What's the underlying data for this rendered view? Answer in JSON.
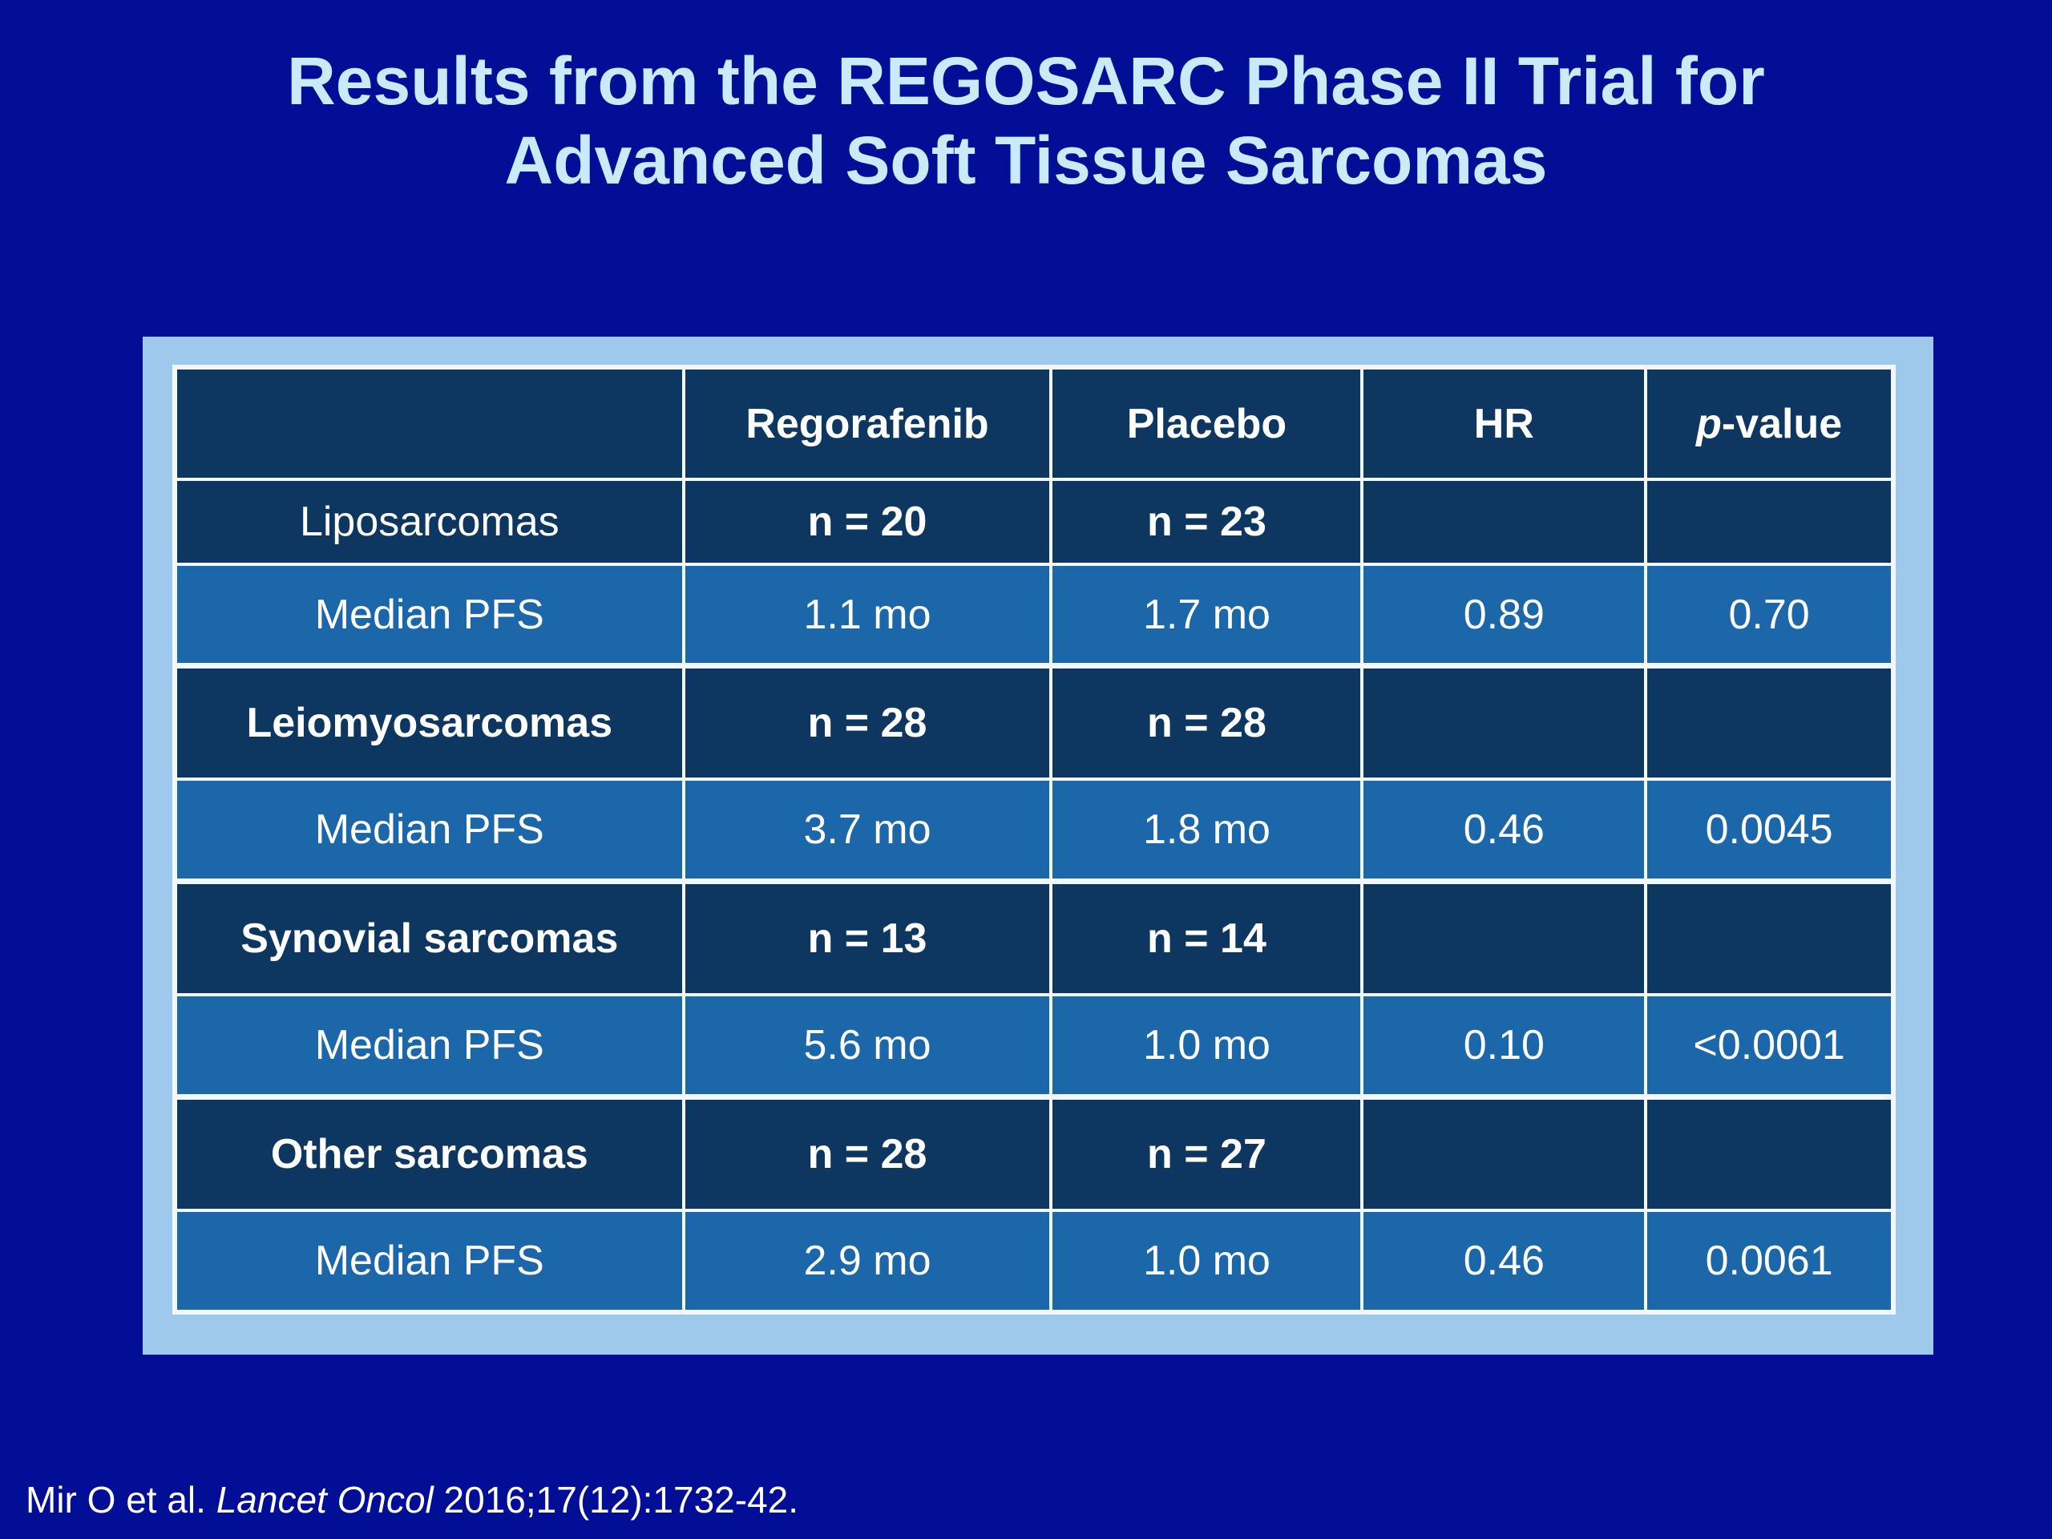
{
  "slide": {
    "title_line1": "Results from the REGOSARC Phase II Trial for",
    "title_line2": "Advanced Soft Tissue Sarcomas"
  },
  "citation": {
    "prefix": "Mir O et al. ",
    "journal": "Lancet Oncol",
    "suffix": " 2016;17(12):1732-42."
  },
  "colors": {
    "slide_background": "#020E96",
    "frame": "#9FC9EC",
    "cell_dark": "#0D3760",
    "cell_light": "#1B67A9",
    "cell_border": "#F2F7FC",
    "title_text": "#C9EAF9",
    "table_text": "#FFFFFF"
  },
  "table": {
    "headers": [
      "",
      "Regorafenib",
      "Placebo",
      "HR",
      "p-value"
    ],
    "header_pvalue": {
      "italic": "p",
      "rest": "-value"
    },
    "rows": [
      {
        "label": "Liposarcomas",
        "regorafenib": "n = 20",
        "placebo": "n = 23",
        "hr": "",
        "pvalue": "",
        "type": "category"
      },
      {
        "label": "Median PFS",
        "regorafenib": "1.1 mo",
        "placebo": "1.7 mo",
        "hr": "0.89",
        "pvalue": "0.70",
        "type": "data"
      },
      {
        "label": "Leiomyosarcomas",
        "regorafenib": "n = 28",
        "placebo": "n = 28",
        "hr": "",
        "pvalue": "",
        "type": "category"
      },
      {
        "label": "Median PFS",
        "regorafenib": "3.7 mo",
        "placebo": "1.8 mo",
        "hr": "0.46",
        "pvalue": "0.0045",
        "type": "data"
      },
      {
        "label": "Synovial sarcomas",
        "regorafenib": "n = 13",
        "placebo": "n = 14",
        "hr": "",
        "pvalue": "",
        "type": "category"
      },
      {
        "label": "Median PFS",
        "regorafenib": "5.6 mo",
        "placebo": "1.0 mo",
        "hr": "0.10",
        "pvalue": "<0.0001",
        "type": "data"
      },
      {
        "label": "Other sarcomas",
        "regorafenib": "n = 28",
        "placebo": "n = 27",
        "hr": "",
        "pvalue": "",
        "type": "category"
      },
      {
        "label": "Median PFS",
        "regorafenib": "2.9 mo",
        "placebo": "1.0 mo",
        "hr": "0.46",
        "pvalue": "0.0061",
        "type": "data"
      }
    ]
  }
}
